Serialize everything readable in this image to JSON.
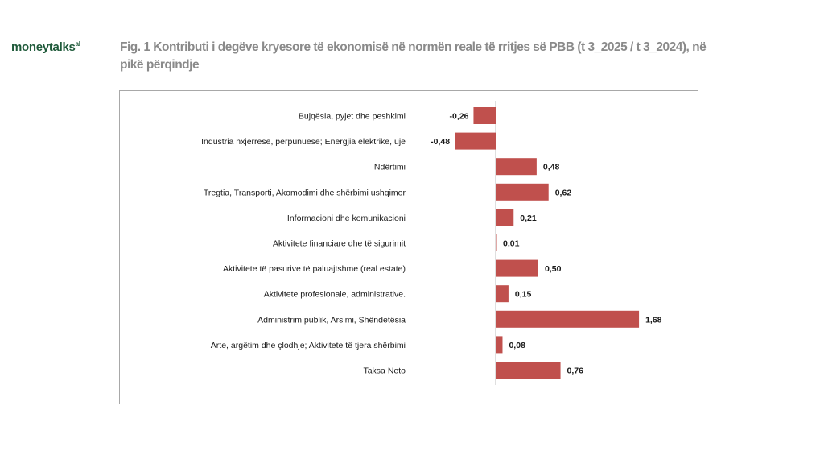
{
  "brand": {
    "name_part1": "money",
    "name_part2": "talks",
    "suffix": "al",
    "color": "#1f5a3a"
  },
  "figure": {
    "title": "Fig. 1 Kontributi i degëve kryesore të ekonomisë në normën reale të rritjes së PBB (t 3_2025 / t 3_2024), në pikë përqindje"
  },
  "chart_data": {
    "type": "bar",
    "orientation": "horizontal",
    "categories": [
      "Bujqësia, pyjet dhe peshkimi",
      "Industria nxjerrëse, përpunuese; Energjia elektrike, ujë",
      "Ndërtimi",
      "Tregtia, Transporti, Akomodimi dhe shërbimi ushqimor",
      "Informacioni dhe komunikacioni",
      "Aktivitete financiare dhe të sigurimit",
      "Aktivitete të pasurive të paluajtshme (real estate)",
      "Aktivitete profesionale, administrative.",
      "Administrim publik, Arsimi, Shëndetësia",
      "Arte, argëtim dhe çlodhje; Aktivitete të tjera shërbimi",
      "Taksa Neto"
    ],
    "values": [
      -0.26,
      -0.48,
      0.48,
      0.62,
      0.21,
      0.01,
      0.5,
      0.15,
      1.68,
      0.08,
      0.76
    ],
    "value_labels": [
      "-0,26",
      "-0,48",
      "0,48",
      "0,62",
      "0,21",
      "0,01",
      "0,50",
      "0,15",
      "1,68",
      "0,08",
      "0,76"
    ],
    "xlim": [
      -0.5,
      1.8
    ],
    "bar_color": "#c0504d",
    "grid": false,
    "legend": "none"
  }
}
